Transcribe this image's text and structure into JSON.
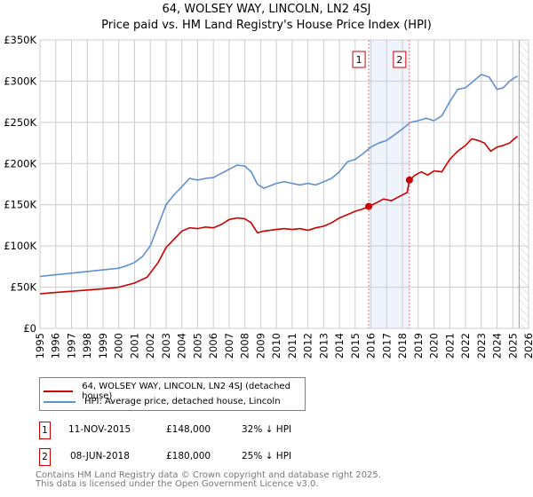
{
  "title_line1": "64, WOLSEY WAY, LINCOLN, LN2 4SJ",
  "title_line2": "Price paid vs. HM Land Registry's House Price Index (HPI)",
  "chart_data": {
    "type": "line",
    "xlim": [
      1995,
      2026
    ],
    "ylim": [
      0,
      350000
    ],
    "yticks": [
      {
        "v": 0,
        "label": "£0"
      },
      {
        "v": 50000,
        "label": "£50K"
      },
      {
        "v": 100000,
        "label": "£100K"
      },
      {
        "v": 150000,
        "label": "£150K"
      },
      {
        "v": 200000,
        "label": "£200K"
      },
      {
        "v": 250000,
        "label": "£250K"
      },
      {
        "v": 300000,
        "label": "£300K"
      },
      {
        "v": 350000,
        "label": "£350K"
      }
    ],
    "xticks": [
      "1995",
      "1996",
      "1997",
      "1998",
      "1999",
      "2000",
      "2001",
      "2002",
      "2003",
      "2004",
      "2005",
      "2006",
      "2007",
      "2008",
      "2009",
      "2010",
      "2011",
      "2012",
      "2013",
      "2014",
      "2015",
      "2016",
      "2017",
      "2018",
      "2019",
      "2020",
      "2021",
      "2022",
      "2023",
      "2024",
      "2025",
      "2026"
    ],
    "grid": true,
    "forecast_start": 2025.4,
    "shaded_span": [
      2015.86,
      2018.44
    ],
    "series": [
      {
        "name": "64, WOLSEY WAY, LINCOLN, LN2 4SJ (detached house)",
        "color": "#cc0000",
        "x": [
          1995,
          1996,
          1997,
          1998,
          1999,
          2000,
          2001,
          2001.8,
          2002.5,
          2003,
          2003.5,
          2004,
          2004.5,
          2005,
          2005.5,
          2006,
          2006.5,
          2007,
          2007.5,
          2008,
          2008.4,
          2008.8,
          2009.2,
          2010,
          2010.5,
          2011,
          2011.5,
          2012,
          2012.5,
          2013,
          2013.5,
          2014,
          2014.5,
          2015,
          2015.5,
          2015.86,
          2016.3,
          2016.8,
          2017.3,
          2017.8,
          2018.3,
          2018.44,
          2018.8,
          2019.2,
          2019.6,
          2020,
          2020.5,
          2021,
          2021.5,
          2022,
          2022.4,
          2022.8,
          2023.2,
          2023.6,
          2024,
          2024.4,
          2024.8,
          2025.1,
          2025.3
        ],
        "y": [
          42000,
          43500,
          45000,
          46500,
          48000,
          50000,
          55000,
          62000,
          80000,
          98000,
          108000,
          118000,
          122000,
          121000,
          123000,
          122000,
          126000,
          132000,
          134000,
          133000,
          128000,
          116000,
          118000,
          120000,
          121000,
          120000,
          121000,
          119000,
          122000,
          124000,
          128000,
          134000,
          138000,
          142000,
          145000,
          148000,
          152000,
          157000,
          155000,
          160000,
          165000,
          180000,
          186000,
          190000,
          186000,
          191000,
          190000,
          205000,
          215000,
          222000,
          230000,
          228000,
          225000,
          215000,
          220000,
          222000,
          225000,
          230000,
          233000
        ]
      },
      {
        "name": "HPI: Average price, detached house, Lincoln",
        "color": "#6090d0",
        "x": [
          1995,
          1996,
          1997,
          1998,
          1999,
          2000,
          2000.5,
          2001,
          2001.5,
          2002,
          2002.5,
          2003,
          2003.5,
          2004,
          2004.5,
          2005,
          2005.5,
          2006,
          2006.5,
          2007,
          2007.5,
          2008,
          2008.4,
          2008.8,
          2009.2,
          2010,
          2010.5,
          2011,
          2011.5,
          2012,
          2012.5,
          2013,
          2013.5,
          2014,
          2014.5,
          2015,
          2015.5,
          2016,
          2016.5,
          2017,
          2017.5,
          2018,
          2018.5,
          2019,
          2019.5,
          2020,
          2020.5,
          2021,
          2021.5,
          2022,
          2022.5,
          2023,
          2023.5,
          2024,
          2024.4,
          2024.8,
          2025.1,
          2025.3
        ],
        "y": [
          63000,
          65000,
          67000,
          69000,
          71000,
          73000,
          76000,
          80000,
          87000,
          100000,
          125000,
          150000,
          162000,
          172000,
          182000,
          180000,
          182000,
          183000,
          188000,
          193000,
          198000,
          197000,
          190000,
          175000,
          170000,
          176000,
          178000,
          176000,
          174000,
          176000,
          174000,
          178000,
          182000,
          190000,
          202000,
          205000,
          212000,
          220000,
          225000,
          228000,
          235000,
          242000,
          250000,
          252000,
          255000,
          252000,
          258000,
          275000,
          290000,
          292000,
          300000,
          308000,
          305000,
          290000,
          292000,
          300000,
          304000,
          306000
        ]
      }
    ],
    "markers": [
      {
        "id": "1",
        "x": 2015.86,
        "y": 148000
      },
      {
        "id": "2",
        "x": 2018.44,
        "y": 180000
      }
    ]
  },
  "legend": [
    {
      "label": "64, WOLSEY WAY, LINCOLN, LN2 4SJ (detached house)",
      "color": "#cc0000"
    },
    {
      "label": "HPI: Average price, detached house, Lincoln",
      "color": "#6090d0"
    }
  ],
  "transactions": [
    {
      "id": "1",
      "date": "11-NOV-2015",
      "price": "£148,000",
      "hpi": "32% ↓ HPI"
    },
    {
      "id": "2",
      "date": "08-JUN-2018",
      "price": "£180,000",
      "hpi": "25% ↓ HPI"
    }
  ],
  "footer_line1": "Contains HM Land Registry data © Crown copyright and database right 2025.",
  "footer_line2": "This data is licensed under the Open Government Licence v3.0."
}
